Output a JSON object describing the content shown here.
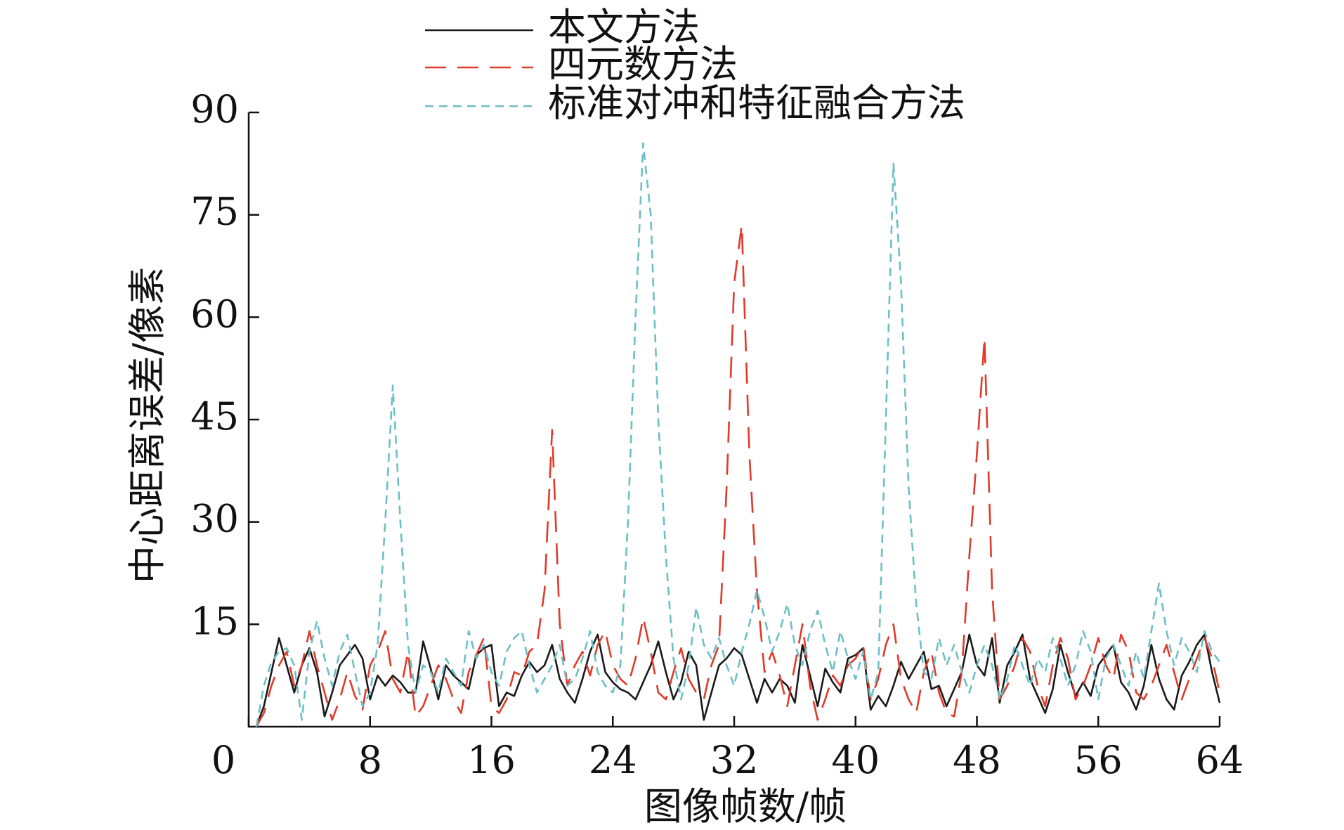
{
  "chart_data": {
    "type": "line",
    "x_label": "图像帧数/帧",
    "y_label": "中心距离误差/像素",
    "xlim": [
      0,
      64
    ],
    "xticks": [
      0,
      8,
      16,
      24,
      32,
      40,
      48,
      56,
      64
    ],
    "ylim": [
      0,
      90
    ],
    "yticks": [
      15,
      30,
      45,
      60,
      75,
      90
    ],
    "legend": "top",
    "x": [
      0.5,
      1,
      1.5,
      2,
      2.5,
      3,
      3.5,
      4,
      4.5,
      5,
      5.5,
      6,
      6.5,
      7,
      7.5,
      8,
      8.5,
      9,
      9.5,
      10,
      10.5,
      11,
      11.5,
      12,
      12.5,
      13,
      13.5,
      14,
      14.5,
      15,
      15.5,
      16,
      16.5,
      17,
      17.5,
      18,
      18.5,
      19,
      19.5,
      20,
      20.5,
      21,
      21.5,
      22,
      22.5,
      23,
      23.5,
      24,
      24.5,
      25,
      25.5,
      26,
      26.5,
      27,
      27.5,
      28,
      28.5,
      29,
      29.5,
      30,
      30.5,
      31,
      31.5,
      32,
      32.5,
      33,
      33.5,
      34,
      34.5,
      35,
      35.5,
      36,
      36.5,
      37,
      37.5,
      38,
      38.5,
      39,
      39.5,
      40,
      40.5,
      41,
      41.5,
      42,
      42.5,
      43,
      43.5,
      44,
      44.5,
      45,
      45.5,
      46,
      46.5,
      47,
      47.5,
      48,
      48.5,
      49,
      49.5,
      50,
      50.5,
      51,
      51.5,
      52,
      52.5,
      53,
      53.5,
      54,
      54.5,
      55,
      55.5,
      56,
      56.5,
      57,
      57.5,
      58,
      58.5,
      59,
      59.5,
      60,
      60.5,
      61,
      61.5,
      62,
      62.5,
      63,
      63.5,
      64
    ],
    "series": [
      {
        "name": "本文方法",
        "color": "#1a1a1a",
        "dash": "none",
        "values": [
          0,
          3,
          8,
          13,
          9,
          5,
          9,
          11.5,
          8,
          1.5,
          5,
          9,
          10.5,
          12,
          10,
          4,
          7.5,
          6,
          7.5,
          6.5,
          5,
          5,
          12.5,
          8.5,
          4,
          9,
          7.5,
          6.5,
          5.5,
          10.5,
          11.5,
          12,
          3,
          5,
          4.5,
          7.5,
          9.5,
          8,
          9,
          12,
          7,
          5,
          3.5,
          7,
          11,
          13.5,
          8,
          6.5,
          5.5,
          5,
          4,
          6.5,
          9,
          12.5,
          8,
          4,
          6.5,
          11,
          9,
          1,
          5,
          9,
          10,
          11.5,
          10.5,
          7,
          3.5,
          7,
          5,
          7,
          6,
          3.5,
          12,
          7.5,
          3,
          8.5,
          6.5,
          5,
          10,
          10.5,
          11.5,
          2.5,
          4.5,
          3,
          6,
          9.5,
          7,
          9,
          11,
          5.5,
          6,
          3,
          5.5,
          8,
          13.5,
          9,
          7.5,
          13,
          3.5,
          9,
          11,
          13.5,
          7,
          4.5,
          2,
          5.5,
          12,
          8,
          4.5,
          6.5,
          4.5,
          9,
          10.5,
          12,
          6.5,
          5,
          2.5,
          6,
          12,
          7,
          4,
          2.5,
          7.5,
          9.5,
          12,
          13.5,
          8,
          3.5
        ]
      },
      {
        "name": "四元数方法",
        "color": "#e03a2a",
        "dash": "30 16",
        "values": [
          0,
          2,
          6,
          9,
          11,
          6,
          9,
          14,
          9,
          5,
          1,
          4,
          8,
          4.5,
          2.5,
          9,
          11,
          14,
          7,
          5,
          11,
          1.5,
          3,
          6,
          9,
          7,
          4,
          2,
          8,
          10.5,
          13,
          3,
          2,
          4,
          8,
          7.5,
          11,
          12,
          20,
          43.5,
          15,
          6,
          9,
          11,
          7.5,
          12,
          14,
          9,
          7,
          6,
          10,
          16,
          11,
          5,
          4,
          8,
          11.5,
          7,
          5,
          4,
          9,
          12,
          35,
          65,
          73.5,
          40,
          20,
          8,
          11,
          7.5,
          3,
          9,
          15,
          6,
          1,
          4,
          7.5,
          6,
          9,
          10,
          12,
          4,
          7,
          12,
          15,
          7,
          4,
          2,
          8,
          11,
          5,
          2,
          1.5,
          8,
          25,
          40,
          57,
          20,
          4,
          6,
          9,
          13,
          11,
          6,
          3,
          9,
          13,
          10,
          4,
          6,
          9,
          13,
          9,
          7,
          13.5,
          11,
          5,
          4,
          6,
          9,
          12,
          8,
          4,
          7,
          10,
          13,
          10,
          5
        ]
      },
      {
        "name": "标准对冲和特征融合方法",
        "color": "#6dbfc6",
        "dash": "12 8",
        "values": [
          0,
          6,
          9.5,
          11,
          11.5,
          9,
          1,
          11,
          15.5,
          10,
          6,
          11,
          13.5,
          8,
          3,
          5,
          12,
          30,
          50,
          30,
          12,
          5,
          9,
          8,
          5,
          10,
          8,
          6,
          14,
          10,
          12,
          8,
          6,
          11,
          13,
          14,
          9,
          5,
          7,
          9,
          12,
          6,
          7,
          10,
          14,
          8,
          6,
          5,
          9,
          30,
          60,
          85.5,
          75,
          45,
          25,
          10,
          4,
          9,
          17.5,
          12,
          10,
          13,
          9,
          6,
          11,
          15,
          20,
          16,
          11,
          14,
          18,
          12,
          9,
          14,
          17,
          12,
          8,
          14,
          10,
          7,
          11,
          4,
          8,
          45,
          82.5,
          65,
          35,
          18,
          8,
          7,
          13,
          9,
          12,
          8,
          5,
          9,
          12,
          9,
          4,
          7,
          12,
          9,
          6,
          10,
          8,
          13,
          10,
          6,
          9,
          14,
          11,
          4,
          10,
          12,
          9,
          6,
          11,
          7,
          14,
          21,
          14,
          9,
          13,
          11,
          8,
          14,
          11,
          9.5
        ]
      }
    ]
  }
}
